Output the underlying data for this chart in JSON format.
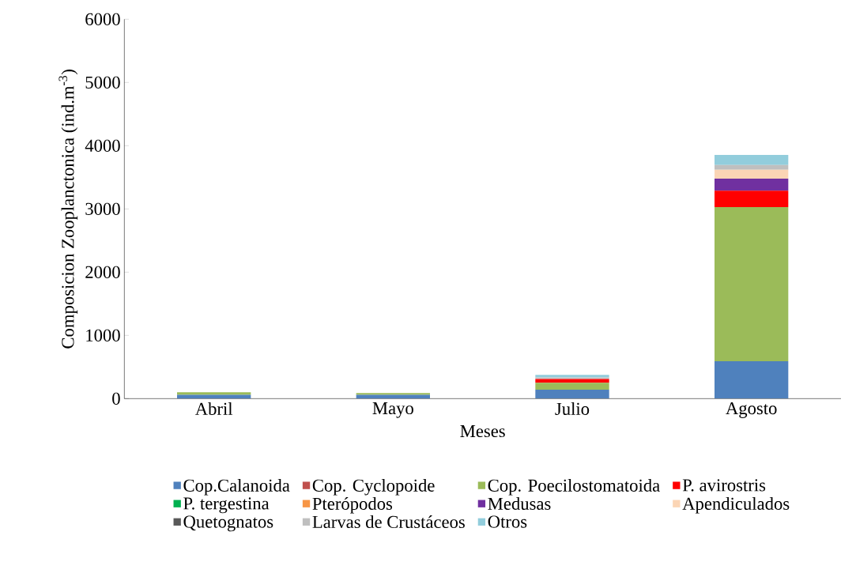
{
  "chart_data": {
    "type": "bar",
    "stacked": true,
    "xlabel": "Meses",
    "ylabel": "Composicion Zooplanctonica (ind.m$^{-3}$)",
    "categories": [
      "Abril",
      "Mayo",
      "Julio",
      "Agosto"
    ],
    "ylim": [
      0,
      6000
    ],
    "yticks": [
      0,
      1000,
      2000,
      3000,
      4000,
      5000,
      6000
    ],
    "grid": false,
    "legend": "bottom",
    "series": [
      {
        "name": "Cop.Calanoida",
        "color": "#4f81bd",
        "values": [
          60,
          60,
          140,
          590
        ]
      },
      {
        "name": "Cop. Cyclopoide",
        "color": "#c0504d",
        "values": [
          0,
          0,
          0,
          0
        ]
      },
      {
        "name": "Cop. Poecilostomatoida",
        "color": "#9bbb59",
        "values": [
          40,
          30,
          110,
          2440
        ]
      },
      {
        "name": "P. avirostris",
        "color": "#ff0000",
        "values": [
          0,
          0,
          60,
          260
        ]
      },
      {
        "name": "P. tergestina",
        "color": "#00b050",
        "values": [
          0,
          0,
          0,
          0
        ]
      },
      {
        "name": "Pterópodos",
        "color": "#f79646",
        "values": [
          0,
          0,
          0,
          0
        ]
      },
      {
        "name": "Medusas",
        "color": "#7030a0",
        "values": [
          0,
          0,
          0,
          190
        ]
      },
      {
        "name": "Apendiculados",
        "color": "#fbd5b5",
        "values": [
          0,
          0,
          0,
          140
        ]
      },
      {
        "name": "Quetognatos",
        "color": "#595959",
        "values": [
          0,
          0,
          0,
          0
        ]
      },
      {
        "name": "Larvas de Crustáceos",
        "color": "#bfbfbf",
        "values": [
          0,
          0,
          25,
          75
        ]
      },
      {
        "name": "Otros",
        "color": "#92cddc",
        "values": [
          0,
          0,
          40,
          160
        ]
      }
    ]
  }
}
